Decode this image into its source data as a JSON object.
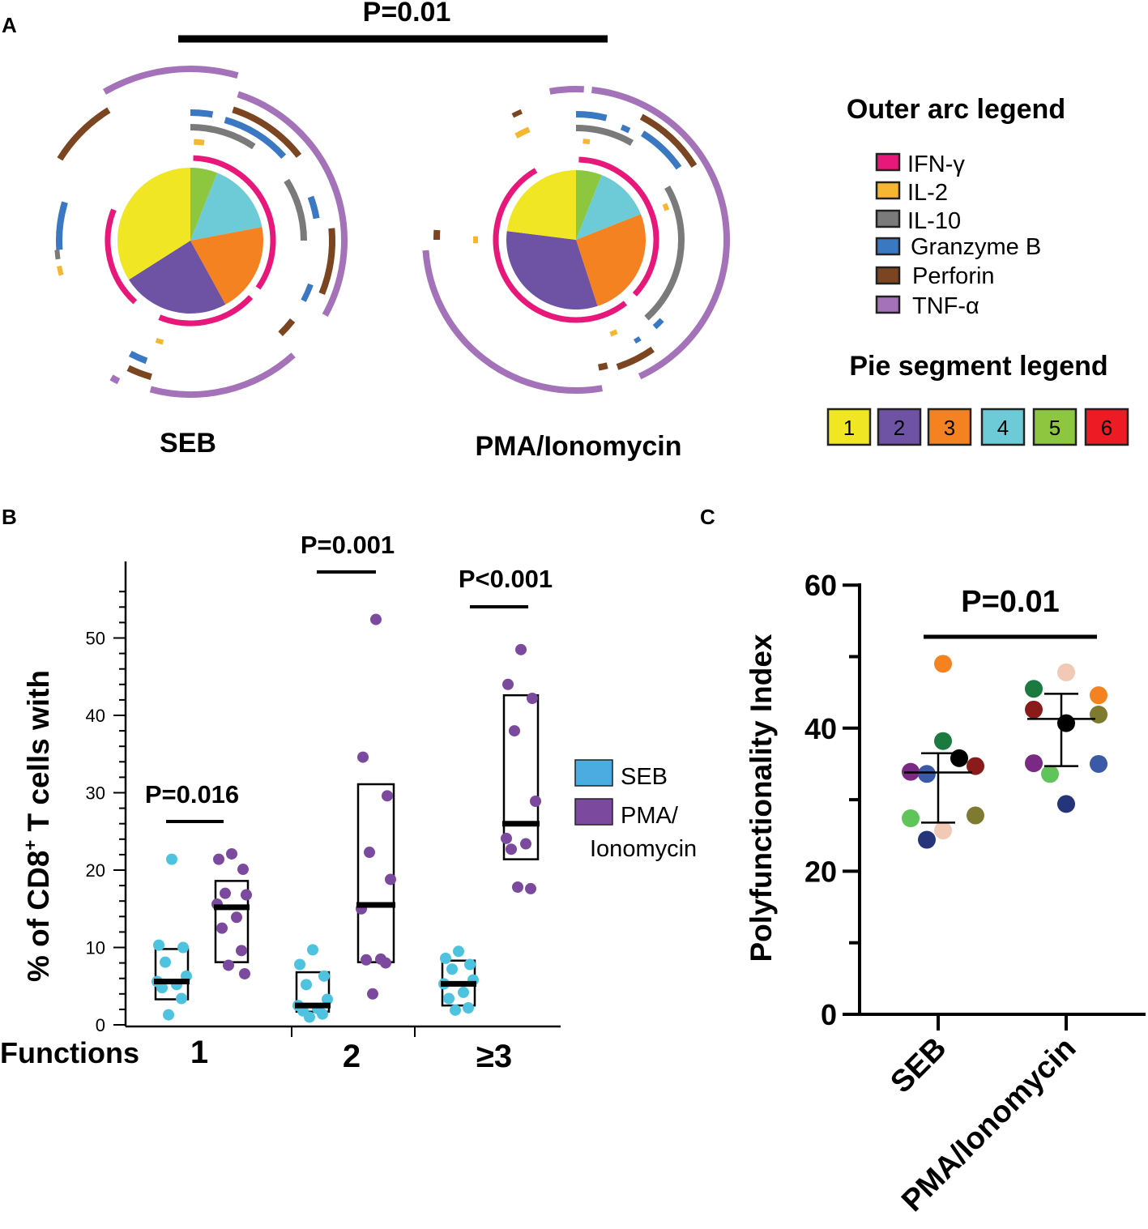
{
  "colors": {
    "ifng": "#e8177a",
    "il2": "#f5b731",
    "il10": "#7a7a7a",
    "gzmb": "#3a78c2",
    "perforin": "#7a4520",
    "tnfa": "#a472b8",
    "pie1": "#f0e624",
    "pie2": "#6e52a3",
    "pie3": "#f58220",
    "pie4": "#6ccbd6",
    "pie5": "#8dc63f",
    "pie6": "#ed1c24",
    "seb": "#4ec3df",
    "pma": "#7b4a9e",
    "seb_legend": "#4aace0"
  },
  "panel_a": {
    "letter": "A",
    "p_value": "P=0.01",
    "left_label": "SEB",
    "right_label": "PMA/Ionomycin",
    "outer_legend_title": "Outer arc legend",
    "outer_legend": [
      {
        "label": "IFN-γ",
        "color_key": "ifng"
      },
      {
        "label": "IL-2",
        "color_key": "il2"
      },
      {
        "label": "IL-10",
        "color_key": "il10"
      },
      {
        "label": "Granzyme B",
        "color_key": "gzmb"
      },
      {
        "label": "Perforin",
        "color_key": "perforin"
      },
      {
        "label": "TNF-α",
        "color_key": "tnfa"
      }
    ],
    "pie_legend_title": "Pie segment legend",
    "pie_legend": [
      "1",
      "2",
      "3",
      "4",
      "5",
      "6"
    ]
  },
  "chart_data": [
    {
      "type": "pie",
      "title": "SEB",
      "categories": [
        "5",
        "4",
        "3",
        "2",
        "1"
      ],
      "values": [
        6,
        16,
        20,
        24,
        34
      ]
    },
    {
      "type": "pie",
      "title": "PMA/Ionomycin",
      "categories": [
        "5",
        "4",
        "3",
        "2",
        "1"
      ],
      "values": [
        6,
        13,
        26,
        32,
        23
      ]
    },
    {
      "type": "scatter",
      "panel": "B",
      "ylabel": "% of CD8+ T cells with",
      "xlabel": "Functions",
      "ylim": [
        0,
        58
      ],
      "yticks": [
        0,
        10,
        20,
        30,
        40,
        50
      ],
      "categories": [
        "1",
        "2",
        "≥3"
      ],
      "legend": [
        "SEB",
        "PMA/ Ionomycin"
      ],
      "groups": [
        {
          "category": "1",
          "series": "SEB",
          "points": [
            21.4,
            10.3,
            10,
            8.1,
            6.3,
            5.6,
            5.2,
            4.8,
            3.4,
            1.3
          ],
          "median": 5.6,
          "box": [
            3.3,
            9.8
          ]
        },
        {
          "category": "1",
          "series": "PMA/Ionomycin",
          "points": [
            22.1,
            21.4,
            20.1,
            17,
            16.8,
            15.6,
            13.9,
            12.5,
            9.6,
            7.7,
            6.6
          ],
          "median": 15.2,
          "box": [
            8.1,
            18.6
          ]
        },
        {
          "category": "2",
          "series": "SEB",
          "points": [
            9.7,
            7.8,
            6.3,
            5.2,
            3.3,
            2.5,
            2.1,
            1.8,
            1.4,
            1
          ],
          "median": 2.5,
          "box": [
            1.7,
            6.8
          ]
        },
        {
          "category": "2",
          "series": "PMA/Ionomycin",
          "points": [
            52.4,
            34.6,
            29.6,
            22.3,
            18.8,
            15,
            8.5,
            8.4,
            8,
            4
          ],
          "median": 15.5,
          "box": [
            8.1,
            31.1
          ]
        },
        {
          "category": "≥3",
          "series": "SEB",
          "points": [
            9.5,
            8.6,
            7.8,
            7.2,
            5.8,
            5.3,
            4.2,
            3.4,
            2.2,
            1.9
          ],
          "median": 5.3,
          "box": [
            2.5,
            8.3
          ]
        },
        {
          "category": "≥3",
          "series": "PMA/Ionomycin",
          "points": [
            48.5,
            44,
            42.2,
            38,
            28.9,
            24.1,
            23.4,
            22.7,
            17.6,
            17.8
          ],
          "median": 26,
          "box": [
            21.4,
            42.6
          ]
        }
      ],
      "annotations": [
        {
          "category": "1",
          "text": "P=0.016"
        },
        {
          "category": "2",
          "text": "P=0.001"
        },
        {
          "category": "≥3",
          "text": "P<0.001"
        }
      ]
    },
    {
      "type": "scatter",
      "panel": "C",
      "ylabel": "Polyfunctionality Index",
      "ylim": [
        0,
        60
      ],
      "yticks": [
        0,
        20,
        40,
        60
      ],
      "categories": [
        "SEB",
        "PMA/Ionomycin"
      ],
      "annotation": "P=0.01",
      "series": [
        {
          "name": "SEB",
          "mean": 33.8,
          "error": [
            26.8,
            36.5
          ],
          "points": [
            {
              "dx": 0,
              "y": 49,
              "color": "#f58220"
            },
            {
              "dx": 0,
              "y": 38.2,
              "color": "#1a7a40"
            },
            {
              "dx": 1,
              "y": 35.8,
              "color": "#000000"
            },
            {
              "dx": 2,
              "y": 34.7,
              "color": "#8b1a1a"
            },
            {
              "dx": -2,
              "y": 33.9,
              "color": "#7b2a84"
            },
            {
              "dx": -1,
              "y": 33.6,
              "color": "#3a5aa8"
            },
            {
              "dx": 2,
              "y": 27.8,
              "color": "#7e7a30"
            },
            {
              "dx": -2,
              "y": 27.4,
              "color": "#5fc45a"
            },
            {
              "dx": 0,
              "y": 25.7,
              "color": "#f2c9b4"
            },
            {
              "dx": -1,
              "y": 24.4,
              "color": "#26347a"
            }
          ]
        },
        {
          "name": "PMA/Ionomycin",
          "mean": 41.3,
          "error": [
            34.7,
            44.8
          ],
          "points": [
            {
              "dx": 0,
              "y": 47.8,
              "color": "#f2c9b4"
            },
            {
              "dx": -2,
              "y": 45.5,
              "color": "#1a7a40"
            },
            {
              "dx": 2,
              "y": 44.6,
              "color": "#f58220"
            },
            {
              "dx": -2,
              "y": 42.6,
              "color": "#8b1a1a"
            },
            {
              "dx": 2,
              "y": 41.9,
              "color": "#7e7a30"
            },
            {
              "dx": 0,
              "y": 40.7,
              "color": "#000000"
            },
            {
              "dx": -2,
              "y": 35.1,
              "color": "#7b2a84"
            },
            {
              "dx": 2,
              "y": 35,
              "color": "#3a5aa8"
            },
            {
              "dx": -1,
              "y": 33.6,
              "color": "#5fc45a"
            },
            {
              "dx": 0,
              "y": 29.4,
              "color": "#26347a"
            }
          ]
        }
      ]
    }
  ],
  "panel_b": {
    "letter": "B",
    "ylabel_main": "% of CD8",
    "ylabel_sup": "+",
    "ylabel_rest": " T cells with",
    "functions_label": "Functions",
    "legend_seb": "SEB",
    "legend_pma_1": "PMA/",
    "legend_pma_2": "Ionomycin"
  },
  "panel_c": {
    "letter": "C"
  }
}
